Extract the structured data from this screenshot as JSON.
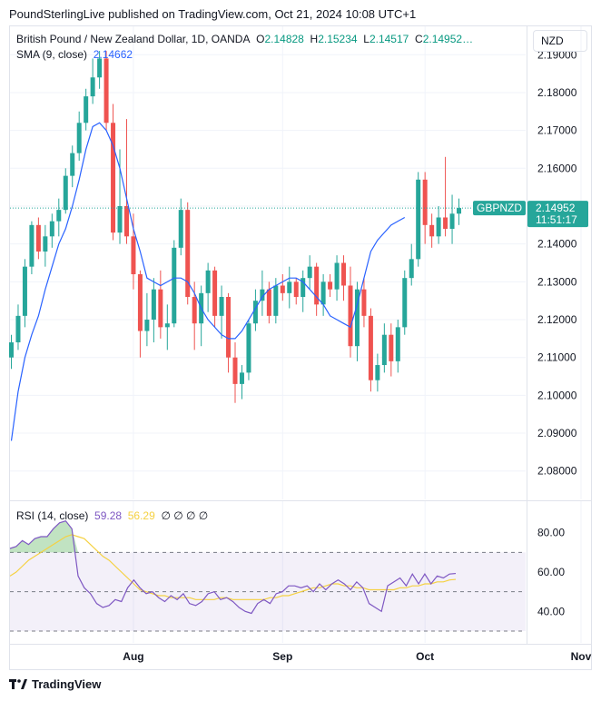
{
  "header": {
    "attribution": "PoundSterlingLive published on TradingView.com, Oct 21, 2024 10:08 UTC+1"
  },
  "legend": {
    "symbol": "British Pound / New Zealand Dollar, 1D, OANDA",
    "o_label": "O",
    "o": "2.14828",
    "h_label": "H",
    "h": "2.15234",
    "l_label": "L",
    "l": "2.14517",
    "c_label": "C",
    "c": "2.14952…",
    "sma_label": "SMA (9, close)",
    "sma_value": "2.14662"
  },
  "currency_button": "NZD",
  "price_badge": {
    "symbol": "GBPNZD",
    "price": "2.14952",
    "countdown": "11:51:17"
  },
  "rsi_legend": {
    "label": "RSI (14, close)",
    "rsi": "59.28",
    "ma": "56.29",
    "empty": "∅ ∅ ∅ ∅"
  },
  "footer": {
    "brand": "TradingView"
  },
  "colors": {
    "up": "#26a69a",
    "down": "#ef5350",
    "sma": "#2962ff",
    "rsi": "#7e57c2",
    "rsi_ma": "#f5d142",
    "band": "#7e57c2"
  },
  "chart_data": [
    {
      "type": "candlestick",
      "title": "British Pound / New Zealand Dollar, 1D, OANDA",
      "ylim": [
        2.0725,
        2.1975
      ],
      "y_ticks": [
        "2.19000",
        "2.18000",
        "2.17000",
        "2.16000",
        "2.15000",
        "2.14000",
        "2.13000",
        "2.12000",
        "2.11000",
        "2.10000",
        "2.09000",
        "2.08000"
      ],
      "x_ticks": [
        {
          "label": "Aug",
          "index": 18
        },
        {
          "label": "Sep",
          "index": 40
        },
        {
          "label": "Oct",
          "index": 61
        },
        {
          "label": "Nov",
          "index": 84
        }
      ],
      "series": [
        {
          "name": "SMA (9, close)",
          "type": "line",
          "values": [
            2.088,
            2.101,
            2.11,
            2.116,
            2.121,
            2.128,
            2.134,
            2.14,
            2.144,
            2.15,
            2.157,
            2.165,
            2.171,
            2.172,
            2.17,
            2.166,
            2.16,
            2.152,
            2.144,
            2.138,
            2.131,
            2.13,
            2.129,
            2.13,
            2.131,
            2.131,
            2.13,
            2.127,
            2.123,
            2.12,
            2.118,
            2.116,
            2.115,
            2.115,
            2.117,
            2.12,
            2.123,
            2.126,
            2.128,
            2.129,
            2.13,
            2.131,
            2.131,
            2.13,
            2.128,
            2.126,
            2.124,
            2.121,
            2.12,
            2.119,
            2.118,
            2.124,
            2.131,
            2.138,
            2.141,
            2.143,
            2.145,
            2.146,
            2.147
          ]
        }
      ],
      "candles": [
        {
          "o": 2.11,
          "h": 2.116,
          "l": 2.107,
          "c": 2.114
        },
        {
          "o": 2.114,
          "h": 2.124,
          "l": 2.112,
          "c": 2.121
        },
        {
          "o": 2.121,
          "h": 2.136,
          "l": 2.118,
          "c": 2.134
        },
        {
          "o": 2.134,
          "h": 2.146,
          "l": 2.132,
          "c": 2.145
        },
        {
          "o": 2.145,
          "h": 2.147,
          "l": 2.136,
          "c": 2.138
        },
        {
          "o": 2.138,
          "h": 2.145,
          "l": 2.134,
          "c": 2.142
        },
        {
          "o": 2.142,
          "h": 2.148,
          "l": 2.139,
          "c": 2.146
        },
        {
          "o": 2.146,
          "h": 2.152,
          "l": 2.142,
          "c": 2.149
        },
        {
          "o": 2.149,
          "h": 2.16,
          "l": 2.148,
          "c": 2.158
        },
        {
          "o": 2.158,
          "h": 2.166,
          "l": 2.155,
          "c": 2.164
        },
        {
          "o": 2.164,
          "h": 2.175,
          "l": 2.162,
          "c": 2.172
        },
        {
          "o": 2.172,
          "h": 2.181,
          "l": 2.17,
          "c": 2.179
        },
        {
          "o": 2.179,
          "h": 2.189,
          "l": 2.177,
          "c": 2.184
        },
        {
          "o": 2.184,
          "h": 2.191,
          "l": 2.181,
          "c": 2.189
        },
        {
          "o": 2.189,
          "h": 2.191,
          "l": 2.17,
          "c": 2.172
        },
        {
          "o": 2.172,
          "h": 2.177,
          "l": 2.141,
          "c": 2.143
        },
        {
          "o": 2.143,
          "h": 2.165,
          "l": 2.14,
          "c": 2.15
        },
        {
          "o": 2.15,
          "h": 2.173,
          "l": 2.14,
          "c": 2.142
        },
        {
          "o": 2.142,
          "h": 2.148,
          "l": 2.128,
          "c": 2.132
        },
        {
          "o": 2.132,
          "h": 2.133,
          "l": 2.11,
          "c": 2.117
        },
        {
          "o": 2.117,
          "h": 2.127,
          "l": 2.113,
          "c": 2.12
        },
        {
          "o": 2.12,
          "h": 2.131,
          "l": 2.114,
          "c": 2.128
        },
        {
          "o": 2.128,
          "h": 2.133,
          "l": 2.115,
          "c": 2.118
        },
        {
          "o": 2.118,
          "h": 2.124,
          "l": 2.112,
          "c": 2.119
        },
        {
          "o": 2.119,
          "h": 2.141,
          "l": 2.118,
          "c": 2.139
        },
        {
          "o": 2.139,
          "h": 2.152,
          "l": 2.137,
          "c": 2.149
        },
        {
          "o": 2.149,
          "h": 2.151,
          "l": 2.124,
          "c": 2.126
        },
        {
          "o": 2.126,
          "h": 2.13,
          "l": 2.112,
          "c": 2.119
        },
        {
          "o": 2.119,
          "h": 2.129,
          "l": 2.113,
          "c": 2.127
        },
        {
          "o": 2.127,
          "h": 2.135,
          "l": 2.122,
          "c": 2.133
        },
        {
          "o": 2.133,
          "h": 2.134,
          "l": 2.118,
          "c": 2.121
        },
        {
          "o": 2.121,
          "h": 2.129,
          "l": 2.115,
          "c": 2.126
        },
        {
          "o": 2.126,
          "h": 2.127,
          "l": 2.106,
          "c": 2.11
        },
        {
          "o": 2.11,
          "h": 2.114,
          "l": 2.098,
          "c": 2.103
        },
        {
          "o": 2.103,
          "h": 2.108,
          "l": 2.099,
          "c": 2.106
        },
        {
          "o": 2.106,
          "h": 2.12,
          "l": 2.104,
          "c": 2.119
        },
        {
          "o": 2.119,
          "h": 2.128,
          "l": 2.117,
          "c": 2.125
        },
        {
          "o": 2.125,
          "h": 2.133,
          "l": 2.121,
          "c": 2.128
        },
        {
          "o": 2.128,
          "h": 2.13,
          "l": 2.119,
          "c": 2.121
        },
        {
          "o": 2.121,
          "h": 2.131,
          "l": 2.119,
          "c": 2.129
        },
        {
          "o": 2.129,
          "h": 2.132,
          "l": 2.125,
          "c": 2.127
        },
        {
          "o": 2.127,
          "h": 2.134,
          "l": 2.123,
          "c": 2.13
        },
        {
          "o": 2.13,
          "h": 2.131,
          "l": 2.124,
          "c": 2.126
        },
        {
          "o": 2.126,
          "h": 2.133,
          "l": 2.122,
          "c": 2.131
        },
        {
          "o": 2.131,
          "h": 2.137,
          "l": 2.128,
          "c": 2.134
        },
        {
          "o": 2.134,
          "h": 2.135,
          "l": 2.121,
          "c": 2.124
        },
        {
          "o": 2.124,
          "h": 2.132,
          "l": 2.121,
          "c": 2.13
        },
        {
          "o": 2.13,
          "h": 2.132,
          "l": 2.126,
          "c": 2.128
        },
        {
          "o": 2.128,
          "h": 2.137,
          "l": 2.125,
          "c": 2.135
        },
        {
          "o": 2.135,
          "h": 2.137,
          "l": 2.125,
          "c": 2.129
        },
        {
          "o": 2.129,
          "h": 2.134,
          "l": 2.11,
          "c": 2.113
        },
        {
          "o": 2.113,
          "h": 2.13,
          "l": 2.109,
          "c": 2.128
        },
        {
          "o": 2.128,
          "h": 2.131,
          "l": 2.118,
          "c": 2.121
        },
        {
          "o": 2.121,
          "h": 2.123,
          "l": 2.101,
          "c": 2.104
        },
        {
          "o": 2.104,
          "h": 2.111,
          "l": 2.101,
          "c": 2.108
        },
        {
          "o": 2.108,
          "h": 2.119,
          "l": 2.106,
          "c": 2.116
        },
        {
          "o": 2.116,
          "h": 2.119,
          "l": 2.105,
          "c": 2.109
        },
        {
          "o": 2.109,
          "h": 2.12,
          "l": 2.106,
          "c": 2.118
        },
        {
          "o": 2.118,
          "h": 2.133,
          "l": 2.116,
          "c": 2.131
        },
        {
          "o": 2.131,
          "h": 2.14,
          "l": 2.129,
          "c": 2.136
        },
        {
          "o": 2.136,
          "h": 2.159,
          "l": 2.134,
          "c": 2.157
        },
        {
          "o": 2.157,
          "h": 2.159,
          "l": 2.14,
          "c": 2.145
        },
        {
          "o": 2.145,
          "h": 2.148,
          "l": 2.139,
          "c": 2.142
        },
        {
          "o": 2.142,
          "h": 2.15,
          "l": 2.14,
          "c": 2.147
        },
        {
          "o": 2.147,
          "h": 2.163,
          "l": 2.142,
          "c": 2.144
        },
        {
          "o": 2.144,
          "h": 2.153,
          "l": 2.14,
          "c": 2.148
        },
        {
          "o": 2.148,
          "h": 2.152,
          "l": 2.145,
          "c": 2.1495
        }
      ]
    },
    {
      "type": "line",
      "title": "RSI (14, close)",
      "ylim": [
        24,
        96
      ],
      "y_ticks": [
        "80.00",
        "60.00",
        "40.00"
      ],
      "bands": {
        "upper": 70,
        "middle": 50,
        "lower": 30
      },
      "series": [
        {
          "name": "RSI",
          "values": [
            72,
            73,
            76,
            74,
            77,
            78,
            78,
            82,
            85,
            86,
            82,
            58,
            52,
            49,
            44,
            42,
            43,
            46,
            45,
            52,
            56,
            52,
            49,
            50,
            47,
            45,
            48,
            46,
            49,
            44,
            43,
            45,
            49,
            50,
            46,
            47,
            45,
            42,
            40,
            39,
            44,
            46,
            44,
            49,
            50,
            53,
            53,
            52,
            53,
            50,
            54,
            51,
            54,
            56,
            54,
            51,
            55,
            52,
            44,
            42,
            40,
            53,
            55,
            57,
            53,
            59,
            54,
            59,
            54,
            58,
            57,
            59,
            59.28
          ]
        },
        {
          "name": "MA",
          "values": [
            58,
            60,
            63,
            66,
            68,
            70,
            72,
            74,
            76,
            78,
            79,
            78,
            77,
            74,
            71,
            68,
            66,
            63,
            60,
            57,
            54,
            51,
            50,
            49,
            48,
            48,
            47,
            47,
            47,
            47,
            46,
            46,
            46,
            46,
            47,
            47,
            46,
            46,
            46,
            46,
            46,
            46,
            47,
            47,
            48,
            48,
            49,
            50,
            51,
            52,
            52,
            53,
            54,
            54,
            53,
            53,
            52,
            52,
            51,
            51,
            51,
            51,
            51,
            52,
            52,
            53,
            53,
            54,
            54,
            55,
            55,
            56,
            56.29
          ]
        }
      ]
    }
  ]
}
